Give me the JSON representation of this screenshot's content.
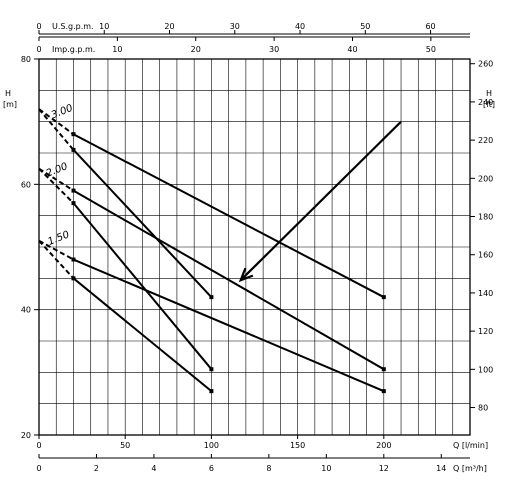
{
  "chart_data": {
    "type": "line",
    "h_axis_label": "H",
    "h_unit_m": "[m]",
    "h_unit_ft": "[ft]",
    "ylim_m": [
      20,
      80
    ],
    "yticks_m": [
      20,
      40,
      60,
      80
    ],
    "ylim_ft": [
      65.6,
      262.5
    ],
    "yticks_ft": [
      80,
      100,
      120,
      140,
      160,
      180,
      200,
      220,
      240,
      260
    ],
    "x_lmin": {
      "label": "Q [l/min]",
      "lim": [
        0,
        250
      ],
      "ticks": [
        0,
        50,
        100,
        150,
        200
      ]
    },
    "x_m3h": {
      "label": "Q [m³/h]",
      "ticks": [
        0,
        2,
        4,
        6,
        8,
        10,
        12,
        14
      ]
    },
    "x_usgpm": {
      "label": "U.S.g.p.m.",
      "ticks": [
        0,
        10,
        20,
        30,
        40,
        50,
        60
      ]
    },
    "x_impgpm": {
      "label": "Imp.g.p.m.",
      "ticks": [
        0,
        10,
        20,
        30,
        40,
        50
      ]
    },
    "series": [
      {
        "name": "3.00",
        "label_x": 8,
        "label_y": 70.5,
        "curves": [
          {
            "x": [
              0,
              20,
              200
            ],
            "y": [
              72,
              68,
              42
            ]
          },
          {
            "x": [
              0,
              20,
              100
            ],
            "y": [
              72,
              65.5,
              42
            ]
          }
        ]
      },
      {
        "name": "2.00",
        "label_x": 5,
        "label_y": 61.2,
        "curves": [
          {
            "x": [
              0,
              20,
              200
            ],
            "y": [
              62.5,
              59,
              30.5
            ]
          },
          {
            "x": [
              0,
              20,
              100
            ],
            "y": [
              62.5,
              57,
              30.5
            ]
          }
        ]
      },
      {
        "name": "1.50",
        "label_x": 6,
        "label_y": 50.3,
        "curves": [
          {
            "x": [
              0,
              20,
              200
            ],
            "y": [
              51,
              48,
              27
            ]
          },
          {
            "x": [
              0,
              20,
              100
            ],
            "y": [
              51,
              45,
              27
            ]
          }
        ]
      }
    ],
    "arrow": {
      "from": [
        210,
        70
      ],
      "to": [
        117,
        44.7
      ]
    },
    "grid": true
  }
}
